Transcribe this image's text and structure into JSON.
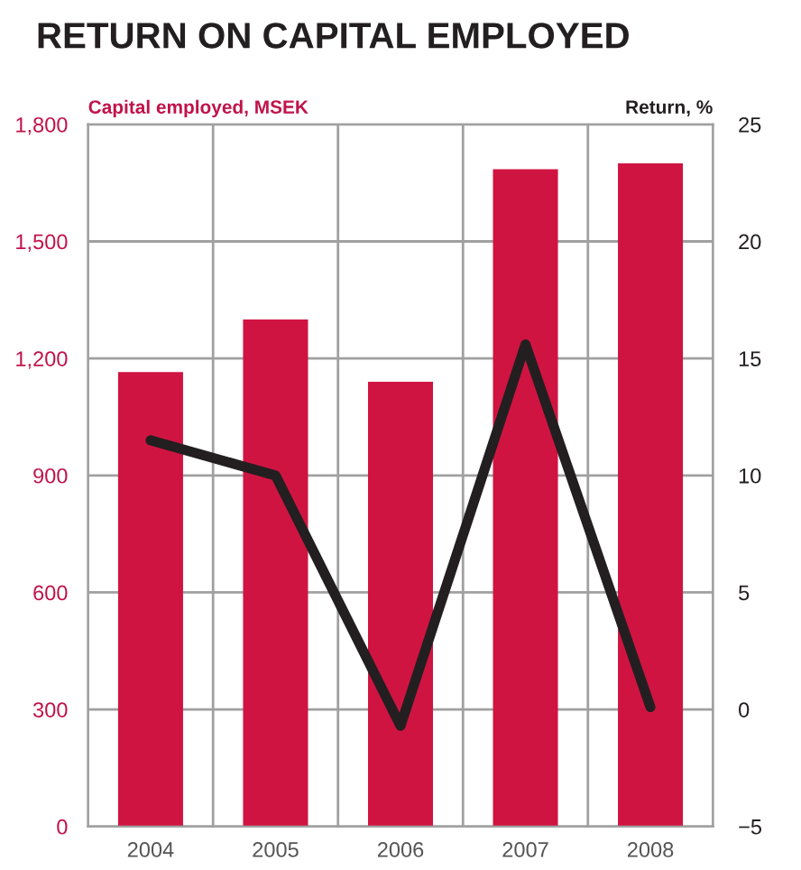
{
  "chart_data": {
    "type": "bar",
    "title": "RETURN ON CAPITAL EMPLOYED",
    "ylabel": "Capital employed, MSEK",
    "y2label": "Return, %",
    "categories": [
      "2004",
      "2005",
      "2006",
      "2007",
      "2008"
    ],
    "series": [
      {
        "color": "#d01442",
        "values": [
          1165,
          1300,
          1140,
          1685,
          1700
        ]
      },
      {
        "type": "line",
        "axis": "y2",
        "color": "#231f20",
        "values": [
          11.5,
          10,
          -0.7,
          15.6,
          0.1
        ]
      }
    ],
    "ylim": [
      0,
      1800
    ],
    "yticks": [
      0,
      {
        "value": 300,
        "label": "300"
      },
      {
        "value": 600,
        "label": "600"
      },
      {
        "value": 900,
        "label": "900"
      },
      {
        "value": 1200,
        "label": "1,200"
      },
      {
        "value": 1500,
        "label": "1,500"
      },
      {
        "value": 1800,
        "label": "1,800"
      }
    ],
    "y2lim": [
      -5,
      25
    ],
    "y2ticks": [
      {
        "value": -5,
        "label": "−5"
      },
      0,
      5,
      10,
      15,
      20,
      25
    ],
    "grid": true,
    "marker": "none",
    "line_style": "solid"
  }
}
